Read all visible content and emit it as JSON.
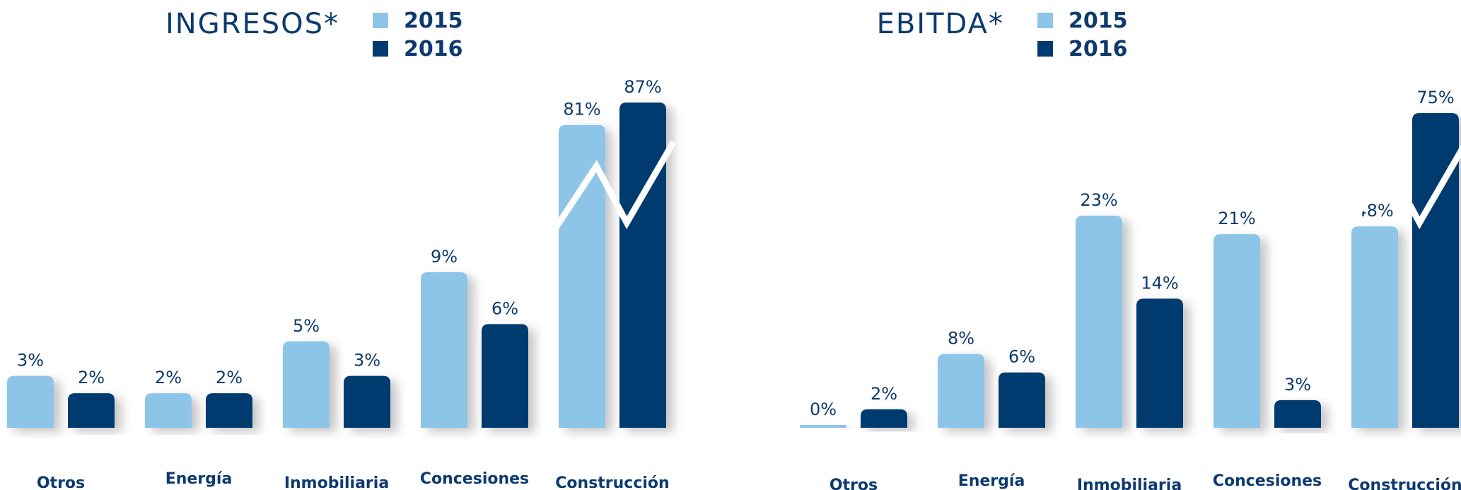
{
  "chart_data": [
    {
      "type": "bar",
      "title": "INGRESOS*",
      "categories": [
        "Otros",
        "Energía",
        "Inmobiliaria",
        "Concesiones",
        "Construcción"
      ],
      "series": [
        {
          "name": "2015",
          "values": [
            3,
            2,
            5,
            9,
            81
          ],
          "labels": [
            "3%",
            "2%",
            "5%",
            "9%",
            "81%"
          ]
        },
        {
          "name": "2016",
          "values": [
            2,
            2,
            3,
            6,
            87
          ],
          "labels": [
            "2%",
            "2%",
            "3%",
            "6%",
            "87%"
          ]
        }
      ],
      "axis_break": "Construcción",
      "legend": "top",
      "grid": false
    },
    {
      "type": "bar",
      "title": "EBITDA*",
      "categories": [
        "Otros",
        "Energía",
        "Inmobiliaria",
        "Concesiones",
        "Construcción"
      ],
      "series": [
        {
          "name": "2015",
          "values": [
            0,
            8,
            23,
            21,
            48
          ],
          "labels": [
            "0%",
            "8%",
            "23%",
            "21%",
            "48%"
          ]
        },
        {
          "name": "2016",
          "values": [
            2,
            6,
            14,
            3,
            75
          ],
          "labels": [
            "2%",
            "6%",
            "14%",
            "3%",
            "75%"
          ]
        }
      ],
      "axis_break": "Construcción",
      "legend": "top",
      "grid": false
    }
  ],
  "colors": {
    "series_2015": "#8dc5e8",
    "series_2016": "#003a70",
    "text": "#0d3a6e"
  }
}
